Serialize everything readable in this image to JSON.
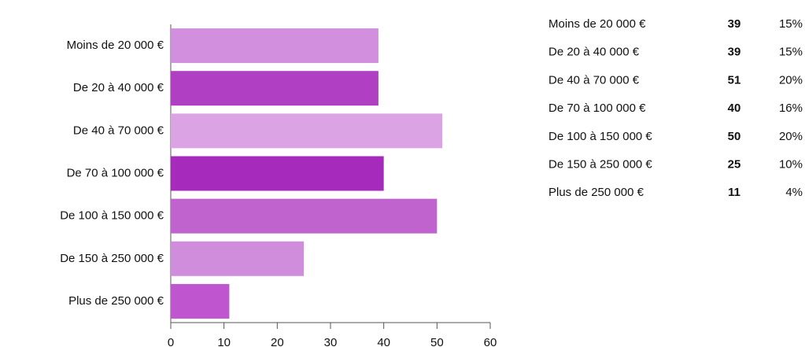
{
  "chart_data": {
    "type": "bar",
    "orientation": "horizontal",
    "categories": [
      "Moins de 20 000 €",
      "De 20 à 40 000 €",
      "De 40 à 70 000 €",
      "De 70 à 100 000 €",
      "De 100 à 150 000 €",
      "De 150 à 250 000 €",
      "Plus de 250 000 €"
    ],
    "values": [
      39,
      39,
      51,
      40,
      50,
      25,
      11
    ],
    "colors": [
      "#d18fde",
      "#b03fc4",
      "#dba3e3",
      "#a62bbd",
      "#c163cf",
      "#d08ddc",
      "#bf55cf"
    ],
    "xlim": [
      0,
      60
    ],
    "xticks": [
      0,
      10,
      20,
      30,
      40,
      50,
      60
    ],
    "grid": false
  },
  "table": {
    "shares": [
      "15%",
      "15%",
      "20%",
      "16%",
      "20%",
      "10%",
      "4%"
    ]
  }
}
